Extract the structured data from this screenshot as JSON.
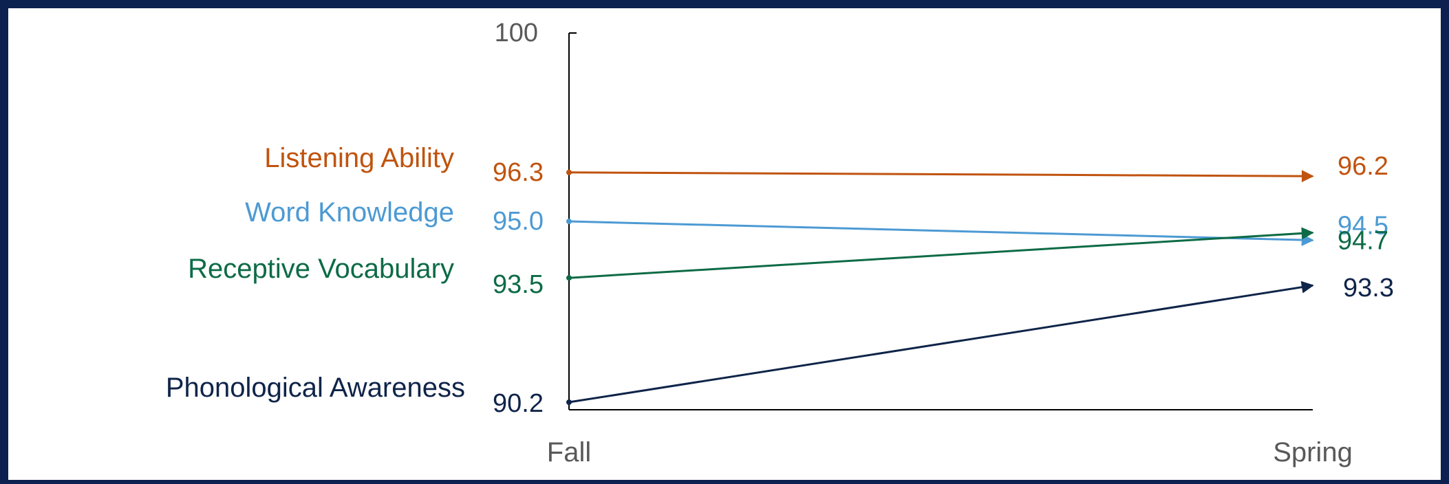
{
  "chart_data": {
    "type": "line",
    "title": "",
    "xlabel": "",
    "ylabel": "",
    "categories": [
      "Fall",
      "Spring"
    ],
    "ylim": [
      90,
      100
    ],
    "y_tick_labels": [
      "100"
    ],
    "grid": false,
    "legend": "left (series names placed beside Fall start points)",
    "series": [
      {
        "name": "Listening Ability",
        "values": [
          96.3,
          96.2
        ],
        "labels": [
          "96.3",
          "96.2"
        ],
        "color": "#c0530f"
      },
      {
        "name": "Word Knowledge",
        "values": [
          95.0,
          94.5
        ],
        "labels": [
          "95.0",
          "94.5"
        ],
        "color": "#4c9ad3"
      },
      {
        "name": "Receptive Vocabulary",
        "values": [
          93.5,
          94.7
        ],
        "labels": [
          "93.5",
          "94.7"
        ],
        "color": "#0d6b46"
      },
      {
        "name": "Phonological Awareness",
        "values": [
          90.2,
          93.3
        ],
        "labels": [
          "90.2",
          "93.3"
        ],
        "color": "#0f2449"
      }
    ]
  },
  "colors": {
    "frame_border": "#0d2150",
    "axis": "#000000",
    "tick_text": "#595959"
  }
}
